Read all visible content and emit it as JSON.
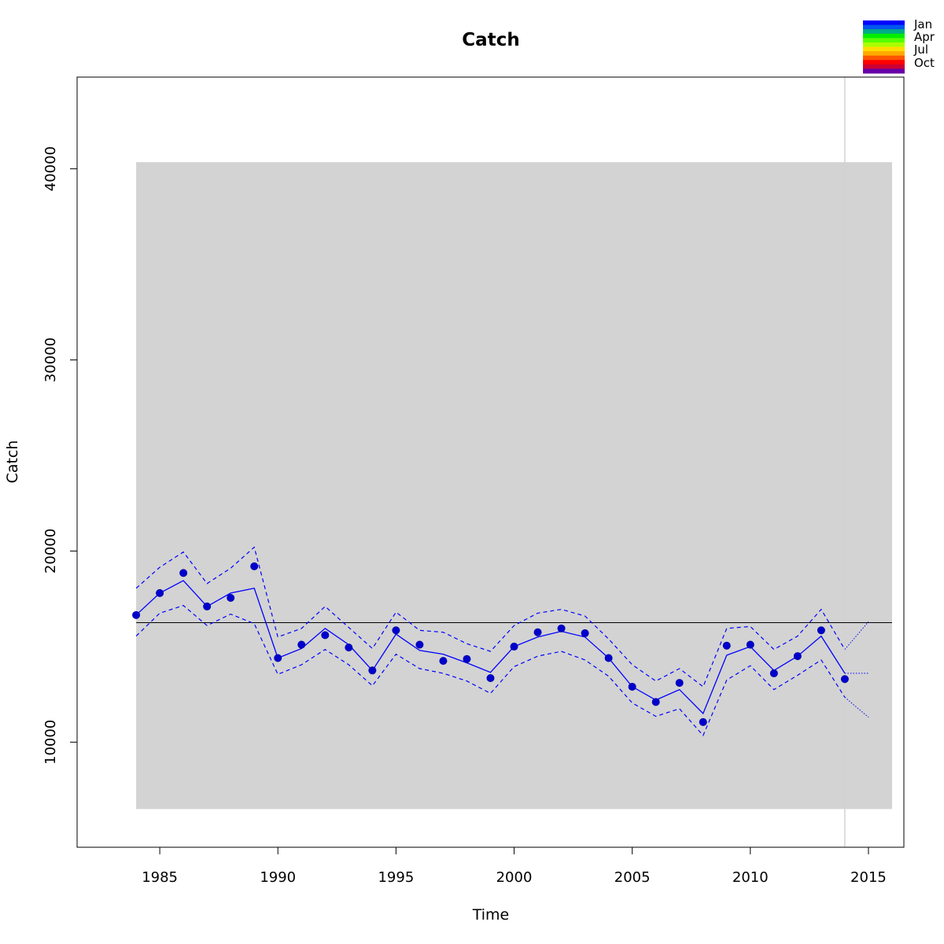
{
  "chart_data": {
    "type": "line",
    "title": "Catch",
    "xlabel": "Time",
    "ylabel": "Catch",
    "xlim": [
      1981.5,
      2016.5
    ],
    "ylim": [
      4500,
      44800
    ],
    "xticks": [
      1985,
      1990,
      1995,
      2000,
      2005,
      2010,
      2015
    ],
    "yticks": [
      10000,
      20000,
      30000,
      40000
    ],
    "x": [
      1984,
      1985,
      1986,
      1987,
      1988,
      1989,
      1990,
      1991,
      1992,
      1993,
      1994,
      1995,
      1996,
      1997,
      1998,
      1999,
      2000,
      2001,
      2002,
      2003,
      2004,
      2005,
      2006,
      2007,
      2008,
      2009,
      2010,
      2011,
      2012,
      2013,
      2014
    ],
    "series": [
      {
        "role": "observed",
        "style": "points",
        "color": "#0000cc",
        "values": [
          16650,
          17800,
          18850,
          17100,
          17550,
          19200,
          14400,
          15100,
          15600,
          14950,
          13750,
          15850,
          15100,
          14250,
          14350,
          13350,
          15000,
          15750,
          15950,
          15700,
          14400,
          12900,
          12100,
          13100,
          11050,
          15050,
          15100,
          13600,
          14500,
          15850,
          13300
        ]
      },
      {
        "role": "fitted",
        "style": "solid",
        "color": "#0000ff",
        "values": [
          16650,
          17800,
          18450,
          17100,
          17800,
          18050,
          14400,
          14900,
          15950,
          15100,
          13750,
          15650,
          14800,
          14600,
          14150,
          13650,
          15000,
          15500,
          15800,
          15500,
          14400,
          12900,
          12200,
          12750,
          11500,
          14550,
          15000,
          13750,
          14500,
          15550,
          13600
        ]
      },
      {
        "role": "upper",
        "style": "dashed",
        "color": "#0000ff",
        "values": [
          18050,
          19150,
          19950,
          18300,
          19100,
          20200,
          15500,
          15950,
          17100,
          16000,
          14900,
          16800,
          15850,
          15750,
          15150,
          14750,
          16100,
          16750,
          16950,
          16600,
          15400,
          14050,
          13200,
          13850,
          12900,
          15950,
          16050,
          14850,
          15550,
          16950,
          14850
        ]
      },
      {
        "role": "lower",
        "style": "dashed",
        "color": "#0000ff",
        "values": [
          15550,
          16750,
          17150,
          16100,
          16700,
          16200,
          13550,
          14050,
          14850,
          14050,
          12950,
          14600,
          13850,
          13600,
          13200,
          12550,
          13950,
          14500,
          14750,
          14300,
          13450,
          12050,
          11350,
          11750,
          10350,
          13250,
          14000,
          12750,
          13500,
          14300,
          12350
        ]
      }
    ],
    "forecast": {
      "x": [
        2014,
        2015
      ],
      "mean": [
        13600,
        13600
      ],
      "upper": [
        14850,
        16300
      ],
      "lower": [
        12350,
        11300
      ]
    },
    "reference_line": 16250,
    "band": {
      "x": [
        1984,
        2016
      ],
      "y": [
        6500,
        40350
      ],
      "color": "#d3d3d3"
    },
    "vertical_line": {
      "x": 2014,
      "color": "#d3d3d3"
    },
    "legend": {
      "placement": "top-right",
      "labels": [
        "Jan",
        "Apr",
        "Jul",
        "Oct"
      ],
      "colors": [
        "#0000ff",
        "#0055ee",
        "#00aa88",
        "#00ee00",
        "#55ff00",
        "#aaff00",
        "#ffdd00",
        "#ffaa00",
        "#ff5500",
        "#ff0000",
        "#cc0033",
        "#6600aa"
      ]
    }
  }
}
